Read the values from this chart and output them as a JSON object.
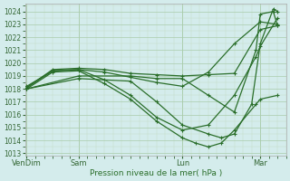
{
  "bg_color": "#d4ecec",
  "grid_major_color": "#aaccaa",
  "grid_minor_color": "#c4ddc4",
  "line_color": "#2a6e2a",
  "ylabel": "Pression niveau de la mer( hPa )",
  "xtick_labels": [
    "VenDim",
    "Sam",
    "Lun",
    "Mar"
  ],
  "xtick_positions": [
    0,
    60,
    180,
    270
  ],
  "xlim": [
    -2,
    300
  ],
  "ylim": [
    1012.8,
    1024.6
  ],
  "yticks": [
    1013,
    1014,
    1015,
    1016,
    1017,
    1018,
    1019,
    1020,
    1021,
    1022,
    1023,
    1024
  ],
  "lines": [
    [
      0,
      1018.2,
      30,
      1019.4,
      60,
      1019.5,
      90,
      1019.3,
      120,
      1018.9,
      150,
      1018.5,
      180,
      1018.2,
      210,
      1019.3,
      240,
      1021.5,
      270,
      1023.2,
      290,
      1023.0
    ],
    [
      0,
      1018.1,
      30,
      1019.5,
      60,
      1019.6,
      90,
      1019.5,
      120,
      1019.2,
      150,
      1019.1,
      180,
      1019.0,
      210,
      1019.1,
      240,
      1019.2,
      270,
      1022.6,
      290,
      1022.9
    ],
    [
      0,
      1018.0,
      30,
      1019.3,
      60,
      1019.4,
      90,
      1018.4,
      120,
      1017.2,
      150,
      1015.5,
      180,
      1014.2,
      195,
      1013.8,
      210,
      1013.5,
      225,
      1013.8,
      240,
      1014.8,
      265,
      1016.8,
      270,
      1017.2,
      290,
      1017.5
    ],
    [
      0,
      1018.1,
      30,
      1019.4,
      60,
      1019.5,
      90,
      1018.7,
      120,
      1017.5,
      150,
      1015.8,
      180,
      1014.8,
      210,
      1015.2,
      240,
      1017.5,
      265,
      1020.5,
      270,
      1021.3,
      290,
      1023.5
    ],
    [
      0,
      1018.0,
      60,
      1018.8,
      120,
      1018.6,
      150,
      1017.0,
      180,
      1015.2,
      210,
      1014.5,
      225,
      1014.2,
      240,
      1014.5,
      260,
      1016.8,
      270,
      1021.5,
      285,
      1024.2,
      290,
      1024.0
    ],
    [
      0,
      1018.0,
      60,
      1019.0,
      120,
      1019.0,
      150,
      1018.8,
      180,
      1018.8,
      210,
      1017.5,
      240,
      1016.2,
      265,
      1021.0,
      270,
      1023.8,
      285,
      1024.0,
      290,
      1022.9
    ]
  ],
  "figsize": [
    3.2,
    2.0
  ],
  "dpi": 100
}
